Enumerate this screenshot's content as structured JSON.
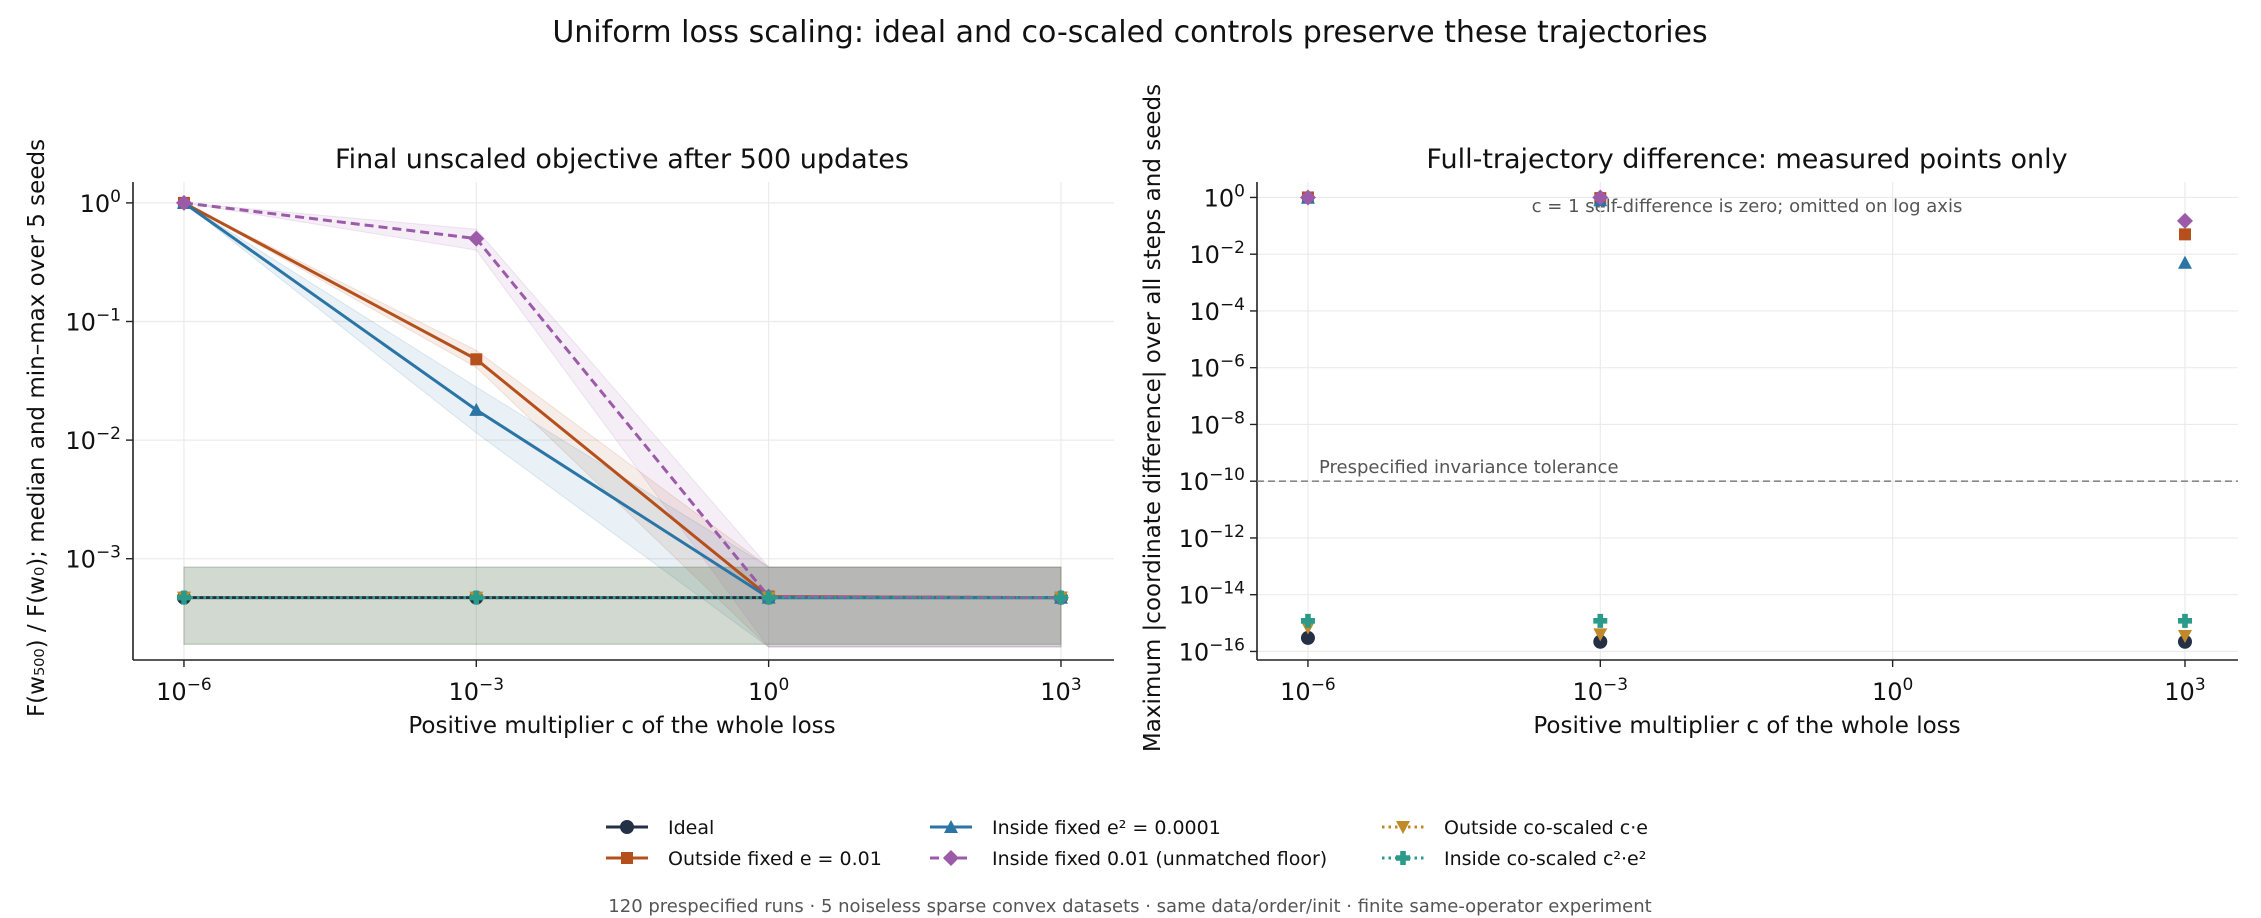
{
  "suptitle": "Uniform loss scaling: ideal and co-scaled controls preserve these trajectories",
  "footer": "120 prespecified runs · 5 noiseless sparse convex datasets · same data/order/init · finite same-operator experiment",
  "series_styles": [
    {
      "name": "Ideal",
      "color": "#243046",
      "marker": "circle",
      "dash": "solid"
    },
    {
      "name": "Outside fixed e = 0.01",
      "color": "#b5501c",
      "marker": "square",
      "dash": "solid"
    },
    {
      "name": "Inside fixed e² = 0.0001",
      "color": "#2a74a6",
      "marker": "triangle-up",
      "dash": "solid"
    },
    {
      "name": "Inside fixed 0.01 (unmatched floor)",
      "color": "#9b5ba8",
      "marker": "diamond",
      "dash": "dashed"
    },
    {
      "name": "Outside co-scaled c·e",
      "color": "#c08a2a",
      "marker": "triangle-down",
      "dash": "dotted"
    },
    {
      "name": "Inside co-scaled c²·e²",
      "color": "#2a9a8a",
      "marker": "plus",
      "dash": "dotted"
    }
  ],
  "chart_data": [
    {
      "type": "line",
      "title": "Final unscaled objective after 500 updates",
      "xlabel": "Positive multiplier c of the whole loss",
      "ylabel": "F(w₅₀₀) / F(w₀); median and min–max over 5 seeds",
      "xscale": "log",
      "yscale": "log",
      "x": [
        1e-06,
        0.001,
        1,
        1000.0
      ],
      "xticks": [
        1e-06,
        0.001,
        1,
        1000.0
      ],
      "xticklabels": [
        [
          "10",
          "−6"
        ],
        [
          "10",
          "−3"
        ],
        [
          "10",
          "0"
        ],
        [
          "10",
          "3"
        ]
      ],
      "yticks": [
        0.001,
        0.01,
        0.1,
        1
      ],
      "yticklabels": [
        [
          "10",
          "−3"
        ],
        [
          "10",
          "−2"
        ],
        [
          "10",
          "−1"
        ],
        [
          "10",
          "0"
        ]
      ],
      "xlim": [
        3e-07,
        3500.0
      ],
      "ylim": [
        0.00014,
        1.5
      ],
      "grid": true,
      "series": [
        {
          "name": "Ideal",
          "median": [
            0.00047,
            0.00047,
            0.00047,
            0.00047
          ],
          "min": [
            0.00019,
            0.00019,
            0.00019,
            0.00019
          ],
          "max": [
            0.00085,
            0.00085,
            0.00085,
            0.00085
          ]
        },
        {
          "name": "Outside fixed e = 0.01",
          "median": [
            1.0,
            0.048,
            0.00048,
            0.00047
          ],
          "min": [
            1.0,
            0.041,
            0.00018,
            0.00018
          ],
          "max": [
            1.0,
            0.057,
            0.00085,
            0.00085
          ]
        },
        {
          "name": "Inside fixed e² = 0.0001",
          "median": [
            1.0,
            0.018,
            0.00047,
            0.00047
          ],
          "min": [
            1.0,
            0.0115,
            0.00018,
            0.00018
          ],
          "max": [
            1.0,
            0.028,
            0.00085,
            0.00085
          ]
        },
        {
          "name": "Inside fixed 0.01 (unmatched floor)",
          "median": [
            1.0,
            0.5,
            0.00048,
            0.00047
          ],
          "min": [
            1.0,
            0.4,
            0.00018,
            0.00018
          ],
          "max": [
            1.0,
            0.6,
            0.00085,
            0.00085
          ]
        },
        {
          "name": "Outside co-scaled c·e",
          "median": [
            0.00047,
            0.00047,
            0.00047,
            0.00047
          ],
          "min": [
            0.00019,
            0.00019,
            0.00019,
            0.00019
          ],
          "max": [
            0.00085,
            0.00085,
            0.00085,
            0.00085
          ]
        },
        {
          "name": "Inside co-scaled c²·e²",
          "median": [
            0.00047,
            0.00047,
            0.00047,
            0.00047
          ],
          "min": [
            0.00019,
            0.00019,
            0.00019,
            0.00019
          ],
          "max": [
            0.00085,
            0.00085,
            0.00085,
            0.00085
          ]
        }
      ]
    },
    {
      "type": "scatter",
      "title": "Full-trajectory difference: measured points only",
      "xlabel": "Positive multiplier c of the whole loss",
      "ylabel": "Maximum |coordinate difference| over all steps and seeds",
      "xscale": "log",
      "yscale": "log",
      "xticks": [
        1e-06,
        0.001,
        1,
        1000.0
      ],
      "xticklabels": [
        [
          "10",
          "−6"
        ],
        [
          "10",
          "−3"
        ],
        [
          "10",
          "0"
        ],
        [
          "10",
          "3"
        ]
      ],
      "yticks": [
        1e-16,
        1e-14,
        1e-12,
        1e-10,
        1e-08,
        1e-06,
        0.0001,
        0.01,
        1
      ],
      "yticklabels": [
        [
          "10",
          "−16"
        ],
        [
          "10",
          "−14"
        ],
        [
          "10",
          "−12"
        ],
        [
          "10",
          "−10"
        ],
        [
          "10",
          "−8"
        ],
        [
          "10",
          "−6"
        ],
        [
          "10",
          "−4"
        ],
        [
          "10",
          "−2"
        ],
        [
          "10",
          "0"
        ]
      ],
      "xlim": [
        3e-07,
        3500.0
      ],
      "ylim": [
        5e-17,
        3.5
      ],
      "grid": true,
      "annotation": "c = 1 self-difference is zero; omitted on log axis",
      "tolerance": {
        "value": 1e-10,
        "label": "Prespecified invariance tolerance"
      },
      "series": [
        {
          "name": "Ideal",
          "x": [
            1e-06,
            0.001,
            1000.0
          ],
          "y": [
            3e-16,
            2.2e-16,
            2.2e-16
          ]
        },
        {
          "name": "Outside fixed e = 0.01",
          "x": [
            1e-06,
            0.001,
            1000.0
          ],
          "y": [
            1.0,
            0.95,
            0.05
          ]
        },
        {
          "name": "Inside fixed e² = 0.0001",
          "x": [
            1e-06,
            0.001,
            1000.0
          ],
          "y": [
            0.98,
            0.8,
            0.005
          ]
        },
        {
          "name": "Inside fixed 0.01 (unmatched floor)",
          "x": [
            1e-06,
            0.001,
            1000.0
          ],
          "y": [
            1.0,
            1.0,
            0.15
          ]
        },
        {
          "name": "Outside co-scaled c·e",
          "x": [
            1e-06,
            0.001,
            1000.0
          ],
          "y": [
            7e-16,
            4e-16,
            3.5e-16
          ]
        },
        {
          "name": "Inside co-scaled c²·e²",
          "x": [
            1e-06,
            0.001,
            1000.0
          ],
          "y": [
            1.2e-15,
            1.2e-15,
            1.2e-15
          ]
        }
      ]
    }
  ]
}
